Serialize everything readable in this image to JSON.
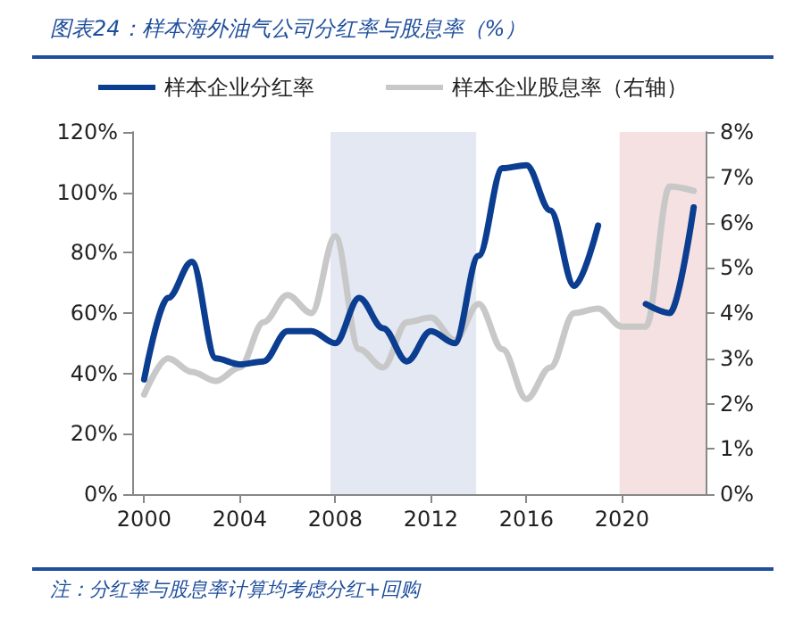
{
  "chart_data": {
    "type": "line",
    "title": "图表24：样本海外油气公司分红率与股息率（%）",
    "annotations": [
      "注：分红率与股息率计算均考虑分红+回购"
    ],
    "x": [
      2000,
      2001,
      2002,
      2003,
      2004,
      2005,
      2006,
      2007,
      2008,
      2009,
      2010,
      2011,
      2012,
      2013,
      2014,
      2015,
      2016,
      2017,
      2018,
      2019,
      2020,
      2021,
      2022,
      2023
    ],
    "series": [
      {
        "name": "样本企业分红率",
        "color": "#0b3d91",
        "values": [
          38,
          65,
          77,
          45,
          43,
          44,
          54,
          54,
          50,
          65,
          55,
          44,
          54,
          50,
          79,
          108,
          109,
          94,
          69,
          89,
          null,
          63,
          60,
          95
        ]
      },
      {
        "name": "样本企业股息率（右轴）",
        "color": "#c8c8c8",
        "axis": "y2",
        "values": [
          2.2,
          3.0,
          2.7,
          2.5,
          2.8,
          3.8,
          4.4,
          4.0,
          5.7,
          3.2,
          2.8,
          3.8,
          3.9,
          3.4,
          4.2,
          3.2,
          2.1,
          2.8,
          4.0,
          4.1,
          3.7,
          3.7,
          6.8,
          6.7
        ]
      }
    ],
    "xlim": [
      1999.5,
      2023.5
    ],
    "xticks": [
      2000,
      2004,
      2008,
      2012,
      2016,
      2020
    ],
    "ylim": [
      0,
      120
    ],
    "yticks": [
      {
        "value": 0,
        "label": "0%"
      },
      {
        "value": 20,
        "label": "20%"
      },
      {
        "value": 40,
        "label": "40%"
      },
      {
        "value": 60,
        "label": "60%"
      },
      {
        "value": 80,
        "label": "80%"
      },
      {
        "value": 100,
        "label": "100%"
      },
      {
        "value": 120,
        "label": "120%"
      }
    ],
    "y2lim": [
      0,
      8
    ],
    "y2ticks": [
      {
        "value": 0,
        "label": "0%"
      },
      {
        "value": 1,
        "label": "1%"
      },
      {
        "value": 2,
        "label": "2%"
      },
      {
        "value": 3,
        "label": "3%"
      },
      {
        "value": 4,
        "label": "4%"
      },
      {
        "value": 5,
        "label": "5%"
      },
      {
        "value": 6,
        "label": "6%"
      },
      {
        "value": 7,
        "label": "7%"
      },
      {
        "value": 8,
        "label": "8%"
      }
    ],
    "bands": [
      {
        "axis": "x",
        "from": 2007.8,
        "to": 2013.9,
        "color": "#e3e8f2"
      },
      {
        "axis": "x",
        "from": 2019.9,
        "to": 2023.5,
        "color": "#f5e1e1"
      }
    ],
    "grid": false,
    "legend": "top",
    "marker": "none",
    "line_style": "solid"
  }
}
